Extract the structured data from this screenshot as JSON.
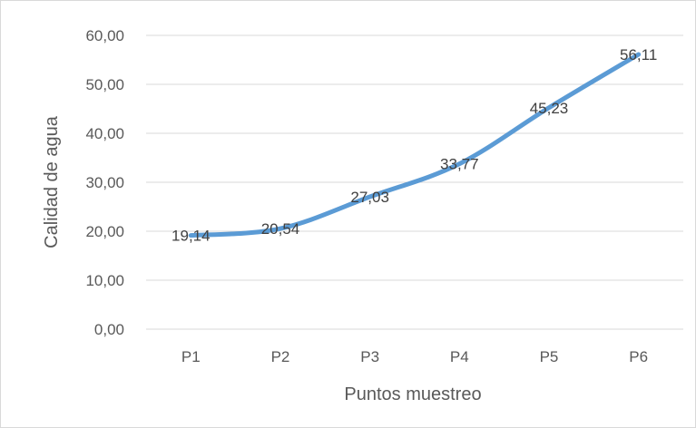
{
  "chart_data": {
    "type": "line",
    "title": "",
    "xlabel": "Puntos muestreo",
    "ylabel": "Calidad de agua",
    "categories": [
      "P1",
      "P2",
      "P3",
      "P4",
      "P5",
      "P6"
    ],
    "values": [
      19.14,
      20.54,
      27.03,
      33.77,
      45.23,
      56.11
    ],
    "value_labels": [
      "19,14",
      "20,54",
      "27,03",
      "33,77",
      "45,23",
      "56,11"
    ],
    "y_ticks": [
      "0,00",
      "10,00",
      "20,00",
      "30,00",
      "40,00",
      "50,00",
      "60,00"
    ],
    "ylim": [
      0,
      60
    ],
    "grid": true,
    "legend": "none",
    "line_color": "#5b9bd5",
    "grid_color": "#d9d9d9"
  }
}
